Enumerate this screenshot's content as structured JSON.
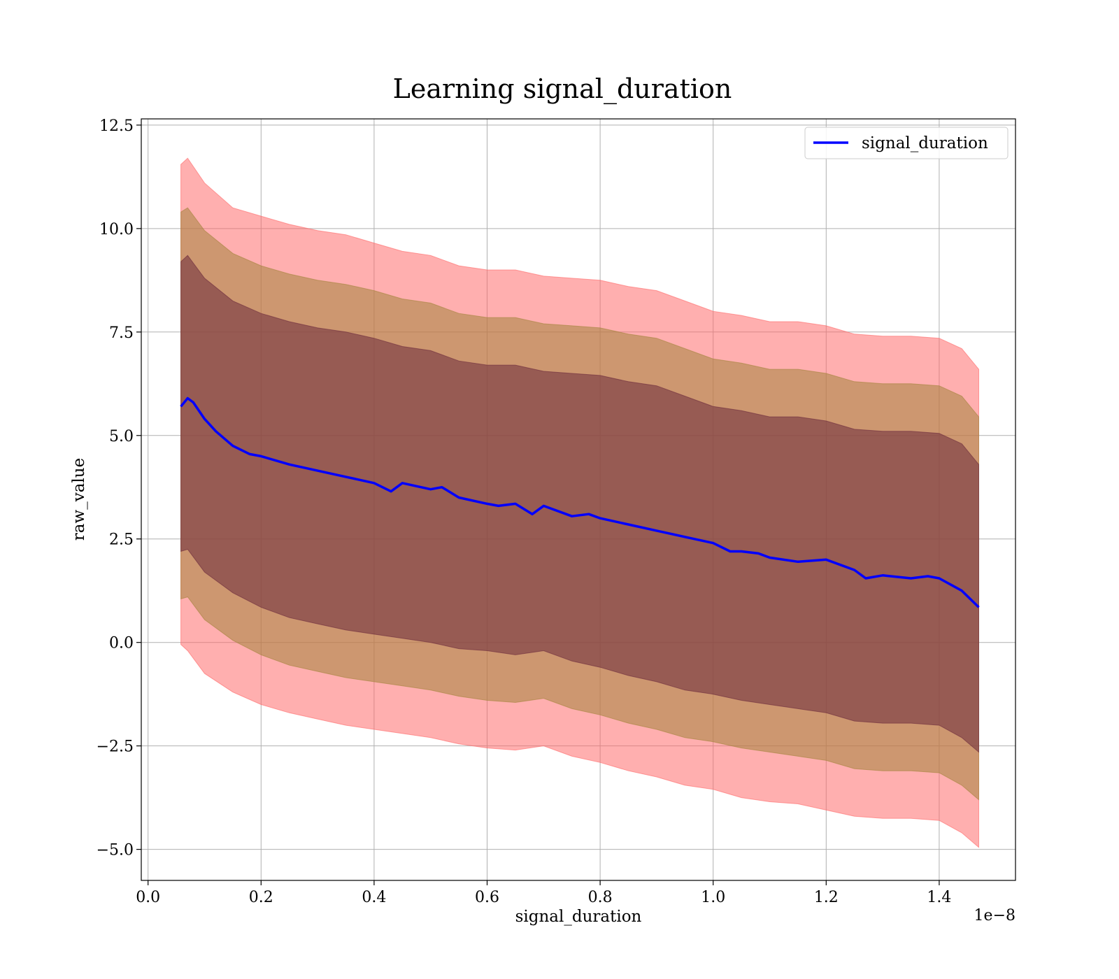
{
  "chart_data": {
    "type": "area",
    "title": "Learning signal_duration",
    "xlabel": "signal_duration",
    "ylabel": "raw_value",
    "x_offset_label": "1e−8",
    "xlim": [
      -0.012,
      1.535
    ],
    "ylim": [
      -5.75,
      12.65
    ],
    "x_ticks": [
      0.0,
      0.2,
      0.4,
      0.6,
      0.8,
      1.0,
      1.2,
      1.4
    ],
    "x_tick_labels": [
      "0.0",
      "0.2",
      "0.4",
      "0.6",
      "0.8",
      "1.0",
      "1.2",
      "1.4"
    ],
    "y_ticks": [
      -5.0,
      -2.5,
      0.0,
      2.5,
      5.0,
      7.5,
      10.0,
      12.5
    ],
    "y_tick_labels": [
      "−5.0",
      "−2.5",
      "0.0",
      "2.5",
      "5.0",
      "7.5",
      "10.0",
      "12.5"
    ],
    "grid": true,
    "legend_position": "top-right",
    "colors": {
      "mean_line": "#0000ff",
      "band": "#ff6666",
      "inner_band": "#6b2a3c",
      "middle_band": "#a4843c"
    },
    "mean": {
      "name": "signal_duration",
      "x": [
        0.058,
        0.07,
        0.08,
        0.1,
        0.12,
        0.15,
        0.18,
        0.2,
        0.25,
        0.3,
        0.35,
        0.4,
        0.43,
        0.45,
        0.5,
        0.52,
        0.55,
        0.6,
        0.62,
        0.65,
        0.68,
        0.7,
        0.75,
        0.78,
        0.8,
        0.85,
        0.9,
        0.95,
        1.0,
        1.03,
        1.05,
        1.08,
        1.1,
        1.15,
        1.2,
        1.25,
        1.27,
        1.3,
        1.35,
        1.38,
        1.4,
        1.44,
        1.47
      ],
      "y": [
        5.7,
        5.9,
        5.8,
        5.4,
        5.1,
        4.75,
        4.55,
        4.5,
        4.3,
        4.15,
        4.0,
        3.85,
        3.65,
        3.85,
        3.7,
        3.75,
        3.5,
        3.35,
        3.3,
        3.35,
        3.1,
        3.3,
        3.05,
        3.1,
        3.0,
        2.85,
        2.7,
        2.55,
        2.4,
        2.2,
        2.2,
        2.15,
        2.05,
        1.95,
        2.0,
        1.75,
        1.55,
        1.62,
        1.55,
        1.6,
        1.55,
        1.25,
        0.85
      ]
    },
    "bands": [
      {
        "level": "outer",
        "color": "#ff6666",
        "x": [
          0.058,
          0.07,
          0.1,
          0.15,
          0.2,
          0.25,
          0.3,
          0.35,
          0.4,
          0.45,
          0.5,
          0.55,
          0.6,
          0.65,
          0.7,
          0.75,
          0.8,
          0.85,
          0.9,
          0.95,
          1.0,
          1.05,
          1.1,
          1.15,
          1.2,
          1.25,
          1.3,
          1.35,
          1.4,
          1.44,
          1.47
        ],
        "lower": [
          -0.05,
          -0.2,
          -0.75,
          -1.2,
          -1.5,
          -1.7,
          -1.85,
          -2.0,
          -2.1,
          -2.2,
          -2.3,
          -2.45,
          -2.55,
          -2.6,
          -2.5,
          -2.75,
          -2.9,
          -3.1,
          -3.25,
          -3.45,
          -3.55,
          -3.75,
          -3.85,
          -3.9,
          -4.05,
          -4.2,
          -4.25,
          -4.25,
          -4.3,
          -4.6,
          -4.95
        ],
        "upper": [
          11.55,
          11.7,
          11.1,
          10.5,
          10.3,
          10.1,
          9.95,
          9.85,
          9.65,
          9.45,
          9.35,
          9.1,
          9.0,
          9.0,
          8.85,
          8.8,
          8.75,
          8.6,
          8.5,
          8.25,
          8.0,
          7.9,
          7.75,
          7.75,
          7.65,
          7.45,
          7.4,
          7.4,
          7.35,
          7.1,
          6.6
        ]
      },
      {
        "level": "middle",
        "color": "#a4843c",
        "x": [
          0.058,
          0.07,
          0.1,
          0.15,
          0.2,
          0.25,
          0.3,
          0.35,
          0.4,
          0.45,
          0.5,
          0.55,
          0.6,
          0.65,
          0.7,
          0.75,
          0.8,
          0.85,
          0.9,
          0.95,
          1.0,
          1.05,
          1.1,
          1.15,
          1.2,
          1.25,
          1.3,
          1.35,
          1.4,
          1.44,
          1.47
        ],
        "lower": [
          1.05,
          1.1,
          0.55,
          0.05,
          -0.3,
          -0.55,
          -0.7,
          -0.85,
          -0.95,
          -1.05,
          -1.15,
          -1.3,
          -1.4,
          -1.45,
          -1.35,
          -1.6,
          -1.75,
          -1.95,
          -2.1,
          -2.3,
          -2.4,
          -2.55,
          -2.65,
          -2.75,
          -2.85,
          -3.05,
          -3.1,
          -3.1,
          -3.15,
          -3.45,
          -3.8
        ],
        "upper": [
          10.4,
          10.5,
          9.95,
          9.4,
          9.1,
          8.9,
          8.75,
          8.65,
          8.5,
          8.3,
          8.2,
          7.95,
          7.85,
          7.85,
          7.7,
          7.65,
          7.6,
          7.45,
          7.35,
          7.1,
          6.85,
          6.75,
          6.6,
          6.6,
          6.5,
          6.3,
          6.25,
          6.25,
          6.2,
          5.95,
          5.45
        ]
      },
      {
        "level": "inner",
        "color": "#6b2a3c",
        "x": [
          0.058,
          0.07,
          0.1,
          0.15,
          0.2,
          0.25,
          0.3,
          0.35,
          0.4,
          0.45,
          0.5,
          0.55,
          0.6,
          0.65,
          0.7,
          0.75,
          0.8,
          0.85,
          0.9,
          0.95,
          1.0,
          1.05,
          1.1,
          1.15,
          1.2,
          1.25,
          1.3,
          1.35,
          1.4,
          1.44,
          1.47
        ],
        "lower": [
          2.2,
          2.25,
          1.7,
          1.2,
          0.85,
          0.6,
          0.45,
          0.3,
          0.2,
          0.1,
          0.0,
          -0.15,
          -0.2,
          -0.3,
          -0.2,
          -0.45,
          -0.6,
          -0.8,
          -0.95,
          -1.15,
          -1.25,
          -1.4,
          -1.5,
          -1.6,
          -1.7,
          -1.9,
          -1.95,
          -1.95,
          -2.0,
          -2.3,
          -2.65
        ],
        "upper": [
          9.2,
          9.35,
          8.8,
          8.25,
          7.95,
          7.75,
          7.6,
          7.5,
          7.35,
          7.15,
          7.05,
          6.8,
          6.7,
          6.7,
          6.55,
          6.5,
          6.45,
          6.3,
          6.2,
          5.95,
          5.7,
          5.6,
          5.45,
          5.45,
          5.35,
          5.15,
          5.1,
          5.1,
          5.05,
          4.8,
          4.3
        ]
      }
    ]
  }
}
